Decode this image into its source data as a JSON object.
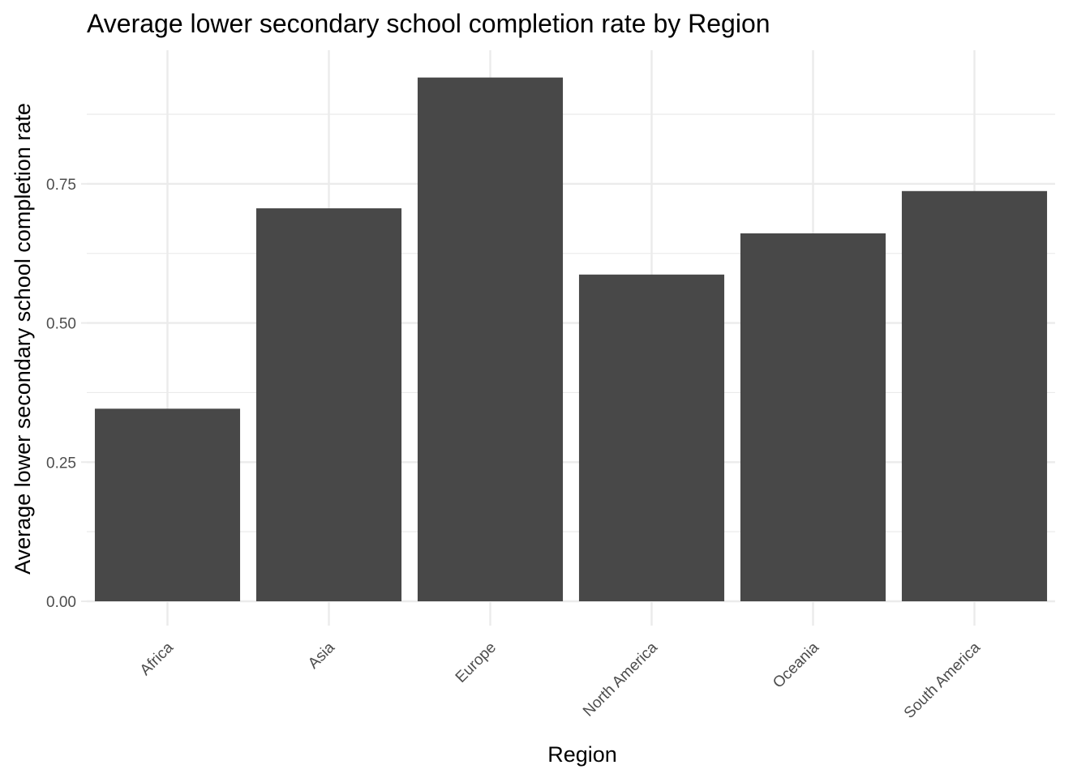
{
  "chart_data": {
    "type": "bar",
    "title": "Average lower secondary school completion rate by Region",
    "xlabel": "Region",
    "ylabel": "Average lower secondary school completion rate",
    "categories": [
      "Africa",
      "Asia",
      "Europe",
      "North America",
      "Oceania",
      "South America"
    ],
    "values": [
      0.346,
      0.706,
      0.941,
      0.587,
      0.661,
      0.737
    ],
    "ylim": [
      0,
      0.99
    ],
    "yticks": [
      0.0,
      0.25,
      0.5,
      0.75
    ],
    "ytick_labels": [
      "0.00",
      "0.25",
      "0.50",
      "0.75"
    ],
    "grid": true,
    "legend": "none",
    "colors": {
      "bar": "#484848",
      "grid": "#ebebeb",
      "background": "#ffffff",
      "text": "#000000",
      "tick_text": "#4d4d4d"
    }
  }
}
